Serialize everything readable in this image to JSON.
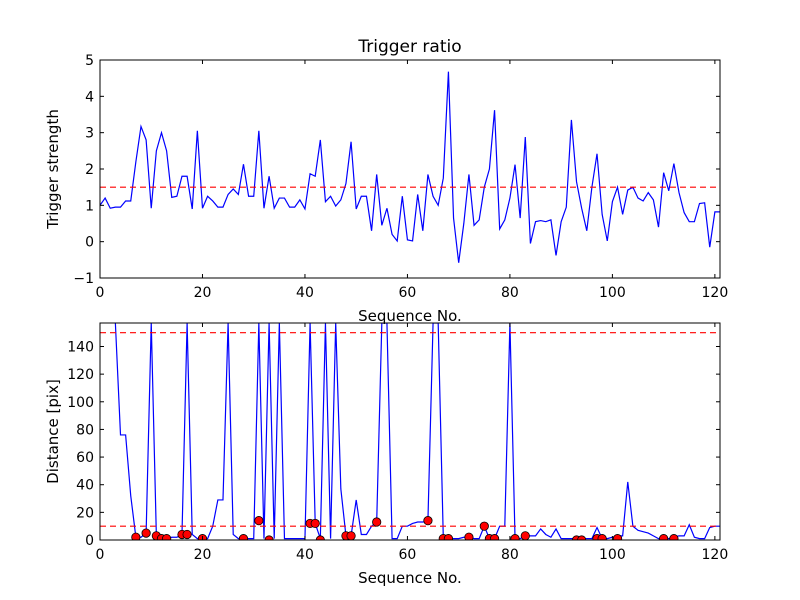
{
  "chart_data": [
    {
      "type": "line",
      "title": "Trigger ratio",
      "xlabel": "Sequence No.",
      "ylabel": "Trigger strength",
      "xlim": [
        0,
        121
      ],
      "ylim": [
        -1,
        5
      ],
      "xticks": [
        0,
        20,
        40,
        60,
        80,
        100,
        120
      ],
      "yticks": [
        -1,
        0,
        1,
        2,
        3,
        4,
        5
      ],
      "xtick_labels": [
        "0",
        "20",
        "40",
        "60",
        "80",
        "100",
        "120"
      ],
      "ytick_labels": [
        "−1",
        "0",
        "1",
        "2",
        "3",
        "4",
        "5"
      ],
      "grid": false,
      "series": [
        {
          "color": "#0000ff",
          "x": [
            0,
            1,
            2,
            3,
            4,
            5,
            6,
            7,
            8,
            9,
            10,
            11,
            12,
            13,
            14,
            15,
            16,
            17,
            18,
            19,
            20,
            21,
            22,
            23,
            24,
            25,
            26,
            27,
            28,
            29,
            30,
            31,
            32,
            33,
            34,
            35,
            36,
            37,
            38,
            39,
            40,
            41,
            42,
            43,
            44,
            45,
            46,
            47,
            48,
            49,
            50,
            51,
            52,
            53,
            54,
            55,
            56,
            57,
            58,
            59,
            60,
            61,
            62,
            63,
            64,
            65,
            66,
            67,
            68,
            69,
            70,
            71,
            72,
            73,
            74,
            75,
            76,
            77,
            78,
            79,
            80,
            81,
            82,
            83,
            84,
            85,
            86,
            87,
            88,
            89,
            90,
            91,
            92,
            93,
            94,
            95,
            96,
            97,
            98,
            99,
            100,
            101,
            102,
            103,
            104,
            105,
            106,
            107,
            108,
            109,
            110,
            111,
            112,
            113,
            114,
            115,
            116,
            117,
            118,
            119,
            120,
            121
          ],
          "y": [
            1.0,
            1.2,
            0.92,
            0.95,
            0.95,
            1.12,
            1.12,
            2.2,
            3.17,
            2.8,
            0.92,
            2.5,
            3.0,
            2.5,
            1.22,
            1.25,
            1.8,
            1.8,
            0.9,
            3.05,
            0.92,
            1.25,
            1.12,
            0.95,
            0.95,
            1.3,
            1.45,
            1.3,
            2.13,
            1.25,
            1.25,
            3.05,
            0.92,
            1.8,
            0.92,
            1.2,
            1.2,
            0.95,
            0.95,
            1.15,
            0.9,
            1.87,
            1.8,
            2.8,
            1.1,
            1.25,
            0.98,
            1.15,
            1.6,
            2.75,
            0.9,
            1.25,
            1.25,
            0.3,
            1.85,
            0.45,
            0.92,
            0.2,
            0.02,
            1.25,
            0.05,
            0.02,
            1.3,
            0.3,
            1.85,
            1.25,
            1.0,
            1.75,
            4.68,
            0.65,
            -0.58,
            0.5,
            1.85,
            0.45,
            0.6,
            1.5,
            2.0,
            3.62,
            0.35,
            0.6,
            1.2,
            2.12,
            0.65,
            2.88,
            -0.05,
            0.55,
            0.58,
            0.55,
            0.6,
            -0.38,
            0.55,
            0.95,
            3.35,
            1.65,
            0.92,
            0.3,
            1.5,
            2.42,
            0.75,
            0.02,
            1.1,
            1.5,
            0.75,
            1.42,
            1.5,
            1.2,
            1.12,
            1.35,
            1.15,
            0.4,
            1.9,
            1.4,
            2.15,
            1.35,
            0.8,
            0.55,
            0.55,
            1.05,
            1.07,
            -0.15,
            0.82,
            0.82
          ]
        }
      ],
      "hlines": [
        {
          "y": 1.5,
          "color": "#ff0000",
          "style": "dashed"
        }
      ]
    },
    {
      "type": "line",
      "title": "",
      "xlabel": "Sequence No.",
      "ylabel": "Distance [pix]",
      "xlim": [
        0,
        121
      ],
      "ylim": [
        0,
        157
      ],
      "xticks": [
        0,
        20,
        40,
        60,
        80,
        100,
        120
      ],
      "yticks": [
        0,
        20,
        40,
        60,
        80,
        100,
        120,
        140
      ],
      "xtick_labels": [
        "0",
        "20",
        "40",
        "60",
        "80",
        "100",
        "120"
      ],
      "ytick_labels": [
        "0",
        "20",
        "40",
        "60",
        "80",
        "100",
        "120",
        "140"
      ],
      "grid": false,
      "series": [
        {
          "color": "#0000ff",
          "x": [
            3,
            4,
            5,
            6,
            7,
            8,
            9,
            10,
            11,
            12,
            13,
            14,
            15,
            16,
            17,
            18,
            19,
            20,
            21,
            22,
            23,
            24,
            25,
            26,
            27,
            28,
            29,
            30,
            31,
            32,
            33,
            34,
            35,
            36,
            37,
            38,
            39,
            40,
            41,
            42,
            43,
            44,
            45,
            46,
            47,
            48,
            49,
            50,
            51,
            52,
            53,
            54,
            55,
            56,
            57,
            58,
            59,
            60,
            61,
            62,
            63,
            64,
            65,
            66,
            67,
            68,
            69,
            70,
            71,
            72,
            73,
            74,
            75,
            76,
            77,
            78,
            79,
            80,
            81,
            82,
            83,
            84,
            85,
            86,
            87,
            88,
            89,
            90,
            91,
            92,
            93,
            94,
            95,
            96,
            97,
            98,
            99,
            100,
            101,
            102,
            103,
            104,
            105,
            106,
            107,
            108,
            109,
            110,
            111,
            112,
            113,
            114,
            115,
            116,
            117,
            118,
            119,
            120,
            121
          ],
          "y": [
            157,
            76,
            76,
            32,
            2,
            2,
            5,
            157,
            3,
            1,
            1,
            2,
            2,
            4,
            157,
            4,
            1,
            1,
            1,
            10,
            29,
            29,
            157,
            4,
            1,
            1,
            1,
            1,
            157,
            1,
            157,
            1,
            157,
            1,
            1,
            1,
            1,
            1,
            157,
            12,
            1,
            157,
            1,
            157,
            37,
            3,
            3,
            29,
            4,
            4,
            10,
            13,
            157,
            157,
            1,
            1,
            10,
            10,
            12,
            13,
            13,
            14,
            157,
            157,
            1,
            1,
            1,
            1,
            2,
            2,
            1,
            1,
            10,
            1,
            1,
            10,
            10,
            157,
            1,
            1,
            3,
            3,
            3,
            8,
            4,
            2,
            8,
            1,
            1,
            1,
            1,
            1,
            1,
            1,
            9,
            1,
            1,
            2,
            3,
            3,
            42,
            10,
            7,
            6,
            5,
            3,
            1,
            1,
            1,
            2,
            3,
            3,
            11,
            2,
            1,
            1,
            9,
            10,
            10
          ]
        }
      ],
      "markers": {
        "color": "#ff0000",
        "x": [
          7,
          9,
          11,
          12,
          13,
          16,
          17,
          20,
          28,
          31,
          33,
          41,
          42,
          43,
          48,
          49,
          54,
          64,
          67,
          68,
          72,
          75,
          76,
          77,
          81,
          83,
          93,
          94,
          97,
          98,
          101,
          110,
          112
        ],
        "y": [
          2,
          5,
          3,
          1,
          1,
          4,
          4,
          1,
          1,
          14,
          0,
          12,
          12,
          0,
          3,
          3,
          13,
          14,
          1,
          1,
          2,
          10,
          1,
          1,
          1,
          3,
          0,
          0,
          1,
          1,
          1,
          1,
          1
        ]
      },
      "hlines": [
        {
          "y": 150,
          "color": "#ff0000",
          "style": "dashed"
        },
        {
          "y": 10,
          "color": "#ff0000",
          "style": "dashed"
        }
      ]
    }
  ]
}
